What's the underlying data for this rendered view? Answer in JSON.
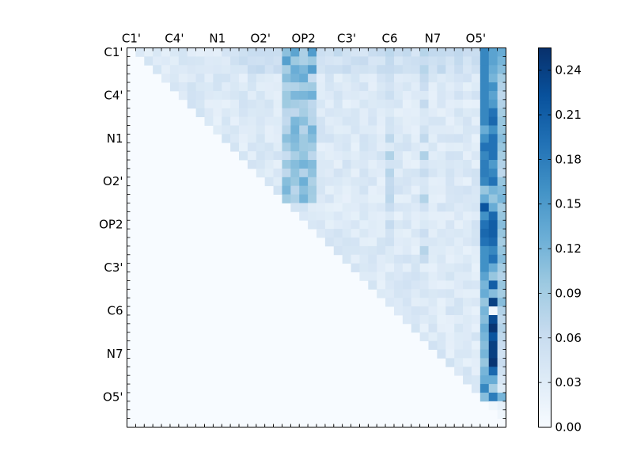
{
  "chart_data": {
    "type": "heatmap",
    "title": "",
    "xlabel": "",
    "ylabel": "",
    "tick_labels": [
      "C1'",
      "C4'",
      "N1",
      "O2'",
      "OP2",
      "C3'",
      "C6",
      "N7",
      "O5'"
    ],
    "grid_size": 44,
    "tick_every": 5,
    "colormap": "Blues",
    "colorbar": {
      "vmin": 0.0,
      "vmax": 0.255,
      "ticks": [
        0.0,
        0.03,
        0.06,
        0.09,
        0.12,
        0.15,
        0.18,
        0.21,
        0.24
      ],
      "tick_labels": [
        "0.00",
        "0.03",
        "0.06",
        "0.09",
        "0.12",
        "0.15",
        "0.18",
        "0.21",
        "0.24"
      ]
    },
    "matrix_note_upper_triangle_only": true,
    "highlight_columns": {
      "41": [
        0.17,
        0.17,
        0.17,
        0.17,
        0.17,
        0.17,
        0.17,
        0.17,
        0.17,
        0.13,
        0.16,
        0.19,
        0.17,
        0.18,
        0.18,
        0.17,
        0.1,
        0.13,
        0.22,
        0.16,
        0.19,
        0.2,
        0.19,
        0.16,
        0.16,
        0.16,
        0.14,
        0.12,
        0.13,
        0.1,
        0.12,
        0.11,
        0.13,
        0.12,
        0.11,
        0.12,
        0.1,
        0.12,
        0.13,
        0.17,
        0.11,
        0.1
      ],
      "42": [
        0.14,
        0.14,
        0.13,
        0.12,
        0.16,
        0.14,
        0.15,
        0.19,
        0.2,
        0.16,
        0.19,
        0.19,
        0.19,
        0.15,
        0.17,
        0.19,
        0.12,
        0.1,
        0.13,
        0.2,
        0.21,
        0.21,
        0.2,
        0.17,
        0.19,
        0.13,
        0.1,
        0.21,
        0.11,
        0.24,
        0.01,
        0.23,
        0.25,
        0.22,
        0.24,
        0.24,
        0.25,
        0.2,
        0.13,
        0.09,
        0.18,
        0.01
      ],
      "43": [
        0.13,
        0.12,
        0.11,
        0.09,
        0.08,
        0.07,
        0.08,
        0.09,
        0.1,
        0.1,
        0.11,
        0.1,
        0.09,
        0.08,
        0.07,
        0.1,
        0.11,
        0.12,
        0.09,
        0.1,
        0.11,
        0.1,
        0.09,
        0.1,
        0.11,
        0.09,
        0.08,
        0.1,
        0.09,
        0.11,
        0.08,
        0.07,
        0.08,
        0.07,
        0.06,
        0.05,
        0.06,
        0.05,
        0.04,
        0.03,
        0.12,
        0.02
      ]
    }
  }
}
